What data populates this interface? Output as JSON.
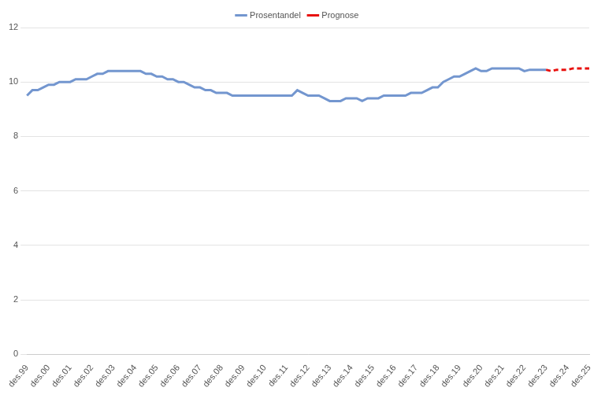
{
  "chart_data": {
    "type": "line",
    "categories": [
      "des.99",
      null,
      null,
      null,
      "des.00",
      null,
      null,
      null,
      "des.01",
      null,
      null,
      null,
      "des.02",
      null,
      null,
      null,
      "des.03",
      null,
      null,
      null,
      "des.04",
      null,
      null,
      null,
      "des.05",
      null,
      null,
      null,
      "des.06",
      null,
      null,
      null,
      "des.07",
      null,
      null,
      null,
      "des.08",
      null,
      null,
      null,
      "des.09",
      null,
      null,
      null,
      "des.10",
      null,
      null,
      null,
      "des.11",
      null,
      null,
      null,
      "des.12",
      null,
      null,
      null,
      "des.13",
      null,
      null,
      null,
      "des.14",
      null,
      null,
      null,
      "des.15",
      null,
      null,
      null,
      "des.16",
      null,
      null,
      null,
      "des.17",
      null,
      null,
      null,
      "des.18",
      null,
      null,
      null,
      "des.19",
      null,
      null,
      null,
      "des.20",
      null,
      null,
      null,
      "des.21",
      null,
      null,
      null,
      "des.22",
      null,
      null,
      null,
      "des.23",
      null,
      null,
      null,
      "des.24",
      null,
      null,
      null,
      "des.25"
    ],
    "series": [
      {
        "name": "Prosentandel",
        "color": "#7396cf",
        "line_style": "solid",
        "marker": "none",
        "values": [
          9.5,
          9.7,
          9.7,
          9.8,
          9.9,
          9.9,
          10.0,
          10.0,
          10.0,
          10.1,
          10.1,
          10.1,
          10.2,
          10.3,
          10.3,
          10.4,
          10.4,
          10.4,
          10.4,
          10.4,
          10.4,
          10.4,
          10.3,
          10.3,
          10.2,
          10.2,
          10.1,
          10.1,
          10.0,
          10.0,
          9.9,
          9.8,
          9.8,
          9.7,
          9.7,
          9.6,
          9.6,
          9.6,
          9.5,
          9.5,
          9.5,
          9.5,
          9.5,
          9.5,
          9.5,
          9.5,
          9.5,
          9.5,
          9.5,
          9.5,
          9.7,
          9.6,
          9.5,
          9.5,
          9.5,
          9.4,
          9.3,
          9.3,
          9.3,
          9.4,
          9.4,
          9.4,
          9.3,
          9.4,
          9.4,
          9.4,
          9.5,
          9.5,
          9.5,
          9.5,
          9.5,
          9.6,
          9.6,
          9.6,
          9.7,
          9.8,
          9.8,
          10.0,
          10.1,
          10.2,
          10.2,
          10.3,
          10.4,
          10.5,
          10.4,
          10.4,
          10.5,
          10.5,
          10.5,
          10.5,
          10.5,
          10.5,
          10.4,
          10.45,
          10.45,
          10.45,
          10.45,
          null,
          null,
          null,
          null,
          null,
          null,
          null,
          null
        ]
      },
      {
        "name": "Prognose",
        "color": "#e8110e",
        "line_style": "dashed",
        "marker": "none",
        "values": [
          null,
          null,
          null,
          null,
          null,
          null,
          null,
          null,
          null,
          null,
          null,
          null,
          null,
          null,
          null,
          null,
          null,
          null,
          null,
          null,
          null,
          null,
          null,
          null,
          null,
          null,
          null,
          null,
          null,
          null,
          null,
          null,
          null,
          null,
          null,
          null,
          null,
          null,
          null,
          null,
          null,
          null,
          null,
          null,
          null,
          null,
          null,
          null,
          null,
          null,
          null,
          null,
          null,
          null,
          null,
          null,
          null,
          null,
          null,
          null,
          null,
          null,
          null,
          null,
          null,
          null,
          null,
          null,
          null,
          null,
          null,
          null,
          null,
          null,
          null,
          null,
          null,
          null,
          null,
          null,
          null,
          null,
          null,
          null,
          null,
          null,
          null,
          null,
          null,
          null,
          null,
          null,
          null,
          null,
          null,
          null,
          10.45,
          10.4,
          10.45,
          10.45,
          10.45,
          10.5,
          10.5,
          10.5,
          10.5
        ]
      }
    ],
    "ylim": [
      0,
      12
    ],
    "yticks": [
      0,
      2,
      4,
      6,
      8,
      10,
      12
    ],
    "grid": true,
    "legend": "top"
  }
}
